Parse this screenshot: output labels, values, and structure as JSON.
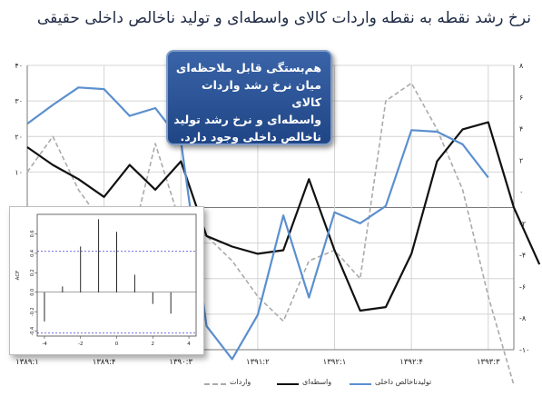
{
  "title": "نرخ رشد نقطه به نقطه  واردات کالای واسطه‌ای و تولید ناخالص داخلی حقیقی",
  "callout": {
    "lines": [
      "هم‌بستگی قابل ملاحظه‌ای",
      "میان نرخ رشد واردات کالای",
      "واسطه‌ای و نرخ رشد تولید",
      "ناخالص داخلی وجود دارد."
    ]
  },
  "chart_data": [
    {
      "type": "line",
      "title": "",
      "x_tick_labels": [
        "۱۳۸۹:۱",
        "۱۳۸۹:۴",
        "۱۳۹۰:۳",
        "۱۳۹۱:۲",
        "۱۳۹۲:۱",
        "۱۳۹۲:۴",
        "۱۳۹۳:۳"
      ],
      "x_tick_positions": [
        0,
        3,
        6,
        9,
        12,
        15,
        18
      ],
      "left_axis": {
        "ticks": [
          "۴۰",
          "۳۰",
          "۲۰",
          "۱۰",
          "۰",
          "-۱۰",
          "-۲۰",
          "-۳۰",
          "-۴۰"
        ],
        "ylim": [
          -40,
          40
        ]
      },
      "right_axis": {
        "ticks": [
          "۸",
          "۶",
          "۴",
          "۲",
          "۰",
          "-۲",
          "-۴",
          "-۶",
          "-۸",
          "-۱۰"
        ],
        "ylim": [
          -10,
          8
        ]
      },
      "series": [
        {
          "name": "واردات",
          "axis": "left",
          "color": "#aaaaaa",
          "dash": true,
          "values": [
            10,
            20,
            5,
            -5,
            -12,
            18,
            -5,
            -8,
            -15,
            -25,
            -32,
            -15,
            -12,
            -20,
            30,
            35,
            22,
            5,
            -25,
            -50
          ]
        },
        {
          "name": "واسطه‌ای",
          "axis": "left",
          "color": "#111111",
          "dash": false,
          "values": [
            17,
            12,
            8,
            3,
            12,
            5,
            13,
            -8,
            -11,
            -13,
            -12,
            8,
            -12,
            -29,
            -28,
            -13,
            13,
            22,
            24,
            0,
            -16
          ]
        },
        {
          "name": "تولیدناخالص داخلی",
          "axis": "right",
          "color": "#5b8fcf",
          "dash": false,
          "values": [
            4.3,
            5.5,
            6.6,
            6.5,
            4.8,
            5.3,
            3.2,
            -8.5,
            -10.6,
            -7.8,
            -1.5,
            -6.7,
            -1.3,
            -2.0,
            -0.9,
            3.9,
            3.8,
            3.0,
            0.9
          ]
        }
      ],
      "legend_position": "bottom"
    },
    {
      "type": "bar",
      "title": "",
      "ylabel": "ACF",
      "x_ticks": [
        "-4",
        "-2",
        "0",
        "2",
        "4"
      ],
      "y_ticks": [
        "-0.4",
        "-0.2",
        "0.0",
        "0.2",
        "0.4",
        "0.6"
      ],
      "lags": [
        -4,
        -3,
        -2,
        -1,
        0,
        1,
        2,
        3
      ],
      "values": [
        -0.3,
        0.06,
        0.47,
        0.75,
        0.62,
        0.18,
        -0.12,
        -0.22
      ],
      "confidence_band": [
        -0.42,
        0.42
      ],
      "ylim": [
        -0.45,
        0.8
      ]
    }
  ]
}
